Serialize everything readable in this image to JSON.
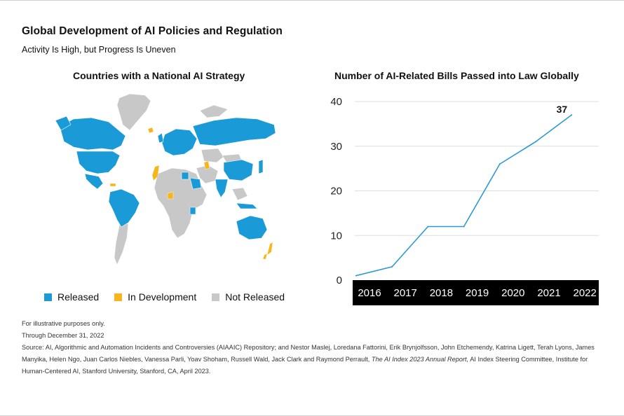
{
  "title": "Global Development of AI Policies and Regulation",
  "subtitle": "Activity Is High, but Progress Is Uneven",
  "map": {
    "title": "Countries with a National AI Strategy",
    "legend": [
      {
        "label": "Released",
        "color": "#1a9bd7"
      },
      {
        "label": "In Development",
        "color": "#f5b51b"
      },
      {
        "label": "Not Released",
        "color": "#c8c8c8"
      }
    ]
  },
  "chart_data": {
    "type": "line",
    "title": "Number of AI-Related Bills Passed into Law Globally",
    "x": [
      "2016",
      "2017",
      "2018",
      "2019",
      "2020",
      "2021",
      "2022"
    ],
    "values": [
      1,
      3,
      12,
      12,
      26,
      31,
      37
    ],
    "ylim": [
      0,
      40
    ],
    "yticks": [
      0,
      10,
      20,
      30,
      40
    ],
    "grid": true,
    "end_label": "37",
    "line_color": "#2b9ad3"
  },
  "notes": {
    "line1": "For illustrative purposes only.",
    "line2": "Through December 31, 2022",
    "source_a": "Source: AI, Algorithmic and Automation Incidents and Controversies (AIAAIC) Repository; and Nestor Maslej, Loredana Fattorini, Erik Brynjolfsson, John Etchemendy, Katrina Ligett, Terah Lyons, James Manyika, Helen Ngo, Juan Carlos Niebles, Vanessa Parli, Yoav Shoham, Russell Wald, Jack Clark and Raymond Perrault,",
    "source_italic": "The AI Index 2023 Annual Report,",
    "source_b": "AI Index Steering Committee, Institute for Human-Centered AI, Stanford University, Stanford, CA, April 2023."
  }
}
